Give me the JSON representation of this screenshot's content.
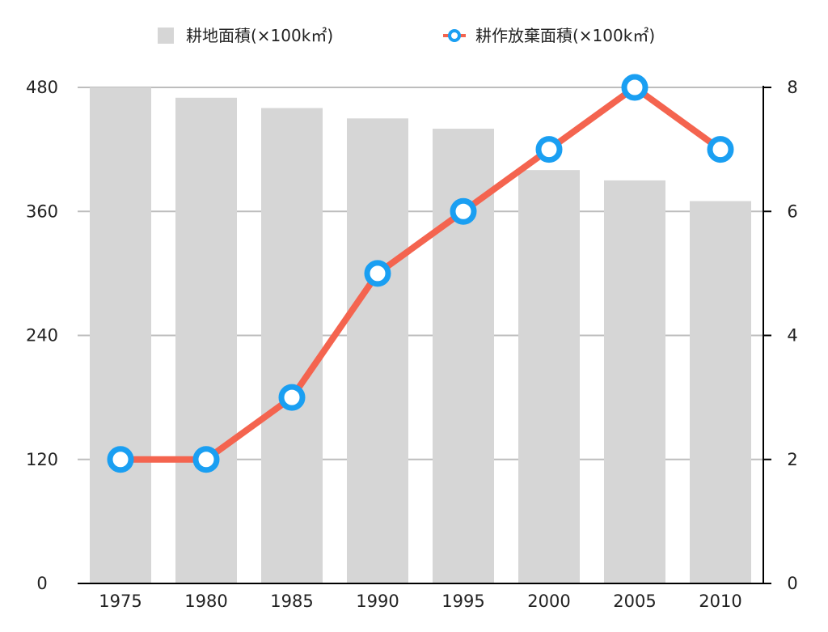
{
  "chart_data": {
    "type": "bar",
    "categories": [
      "1975",
      "1980",
      "1985",
      "1990",
      "1995",
      "2000",
      "2005",
      "2010"
    ],
    "series": [
      {
        "name": "耕地面積(×100k㎡)",
        "type": "bar",
        "axis": "left",
        "values": [
          480,
          470,
          460,
          450,
          440,
          400,
          390,
          370
        ]
      },
      {
        "name": "耕作放棄面積(×100k㎡)",
        "type": "line",
        "axis": "right",
        "values": [
          2,
          2,
          3,
          5,
          6,
          7,
          8,
          7
        ]
      }
    ],
    "y_left": {
      "ticks": [
        "0",
        "120",
        "240",
        "360",
        "480"
      ],
      "ylim": [
        0,
        480
      ]
    },
    "y_right": {
      "ticks": [
        "0",
        "2",
        "4",
        "6",
        "8"
      ],
      "ylim": [
        0,
        8
      ]
    },
    "grid": true,
    "legend_position": "top",
    "colors": {
      "bar": "#d6d6d6",
      "line": "#f4644f",
      "marker_stroke": "#1a9ff2",
      "marker_fill": "#ffffff",
      "grid": "#bdbdbd",
      "axis": "#000000"
    }
  }
}
